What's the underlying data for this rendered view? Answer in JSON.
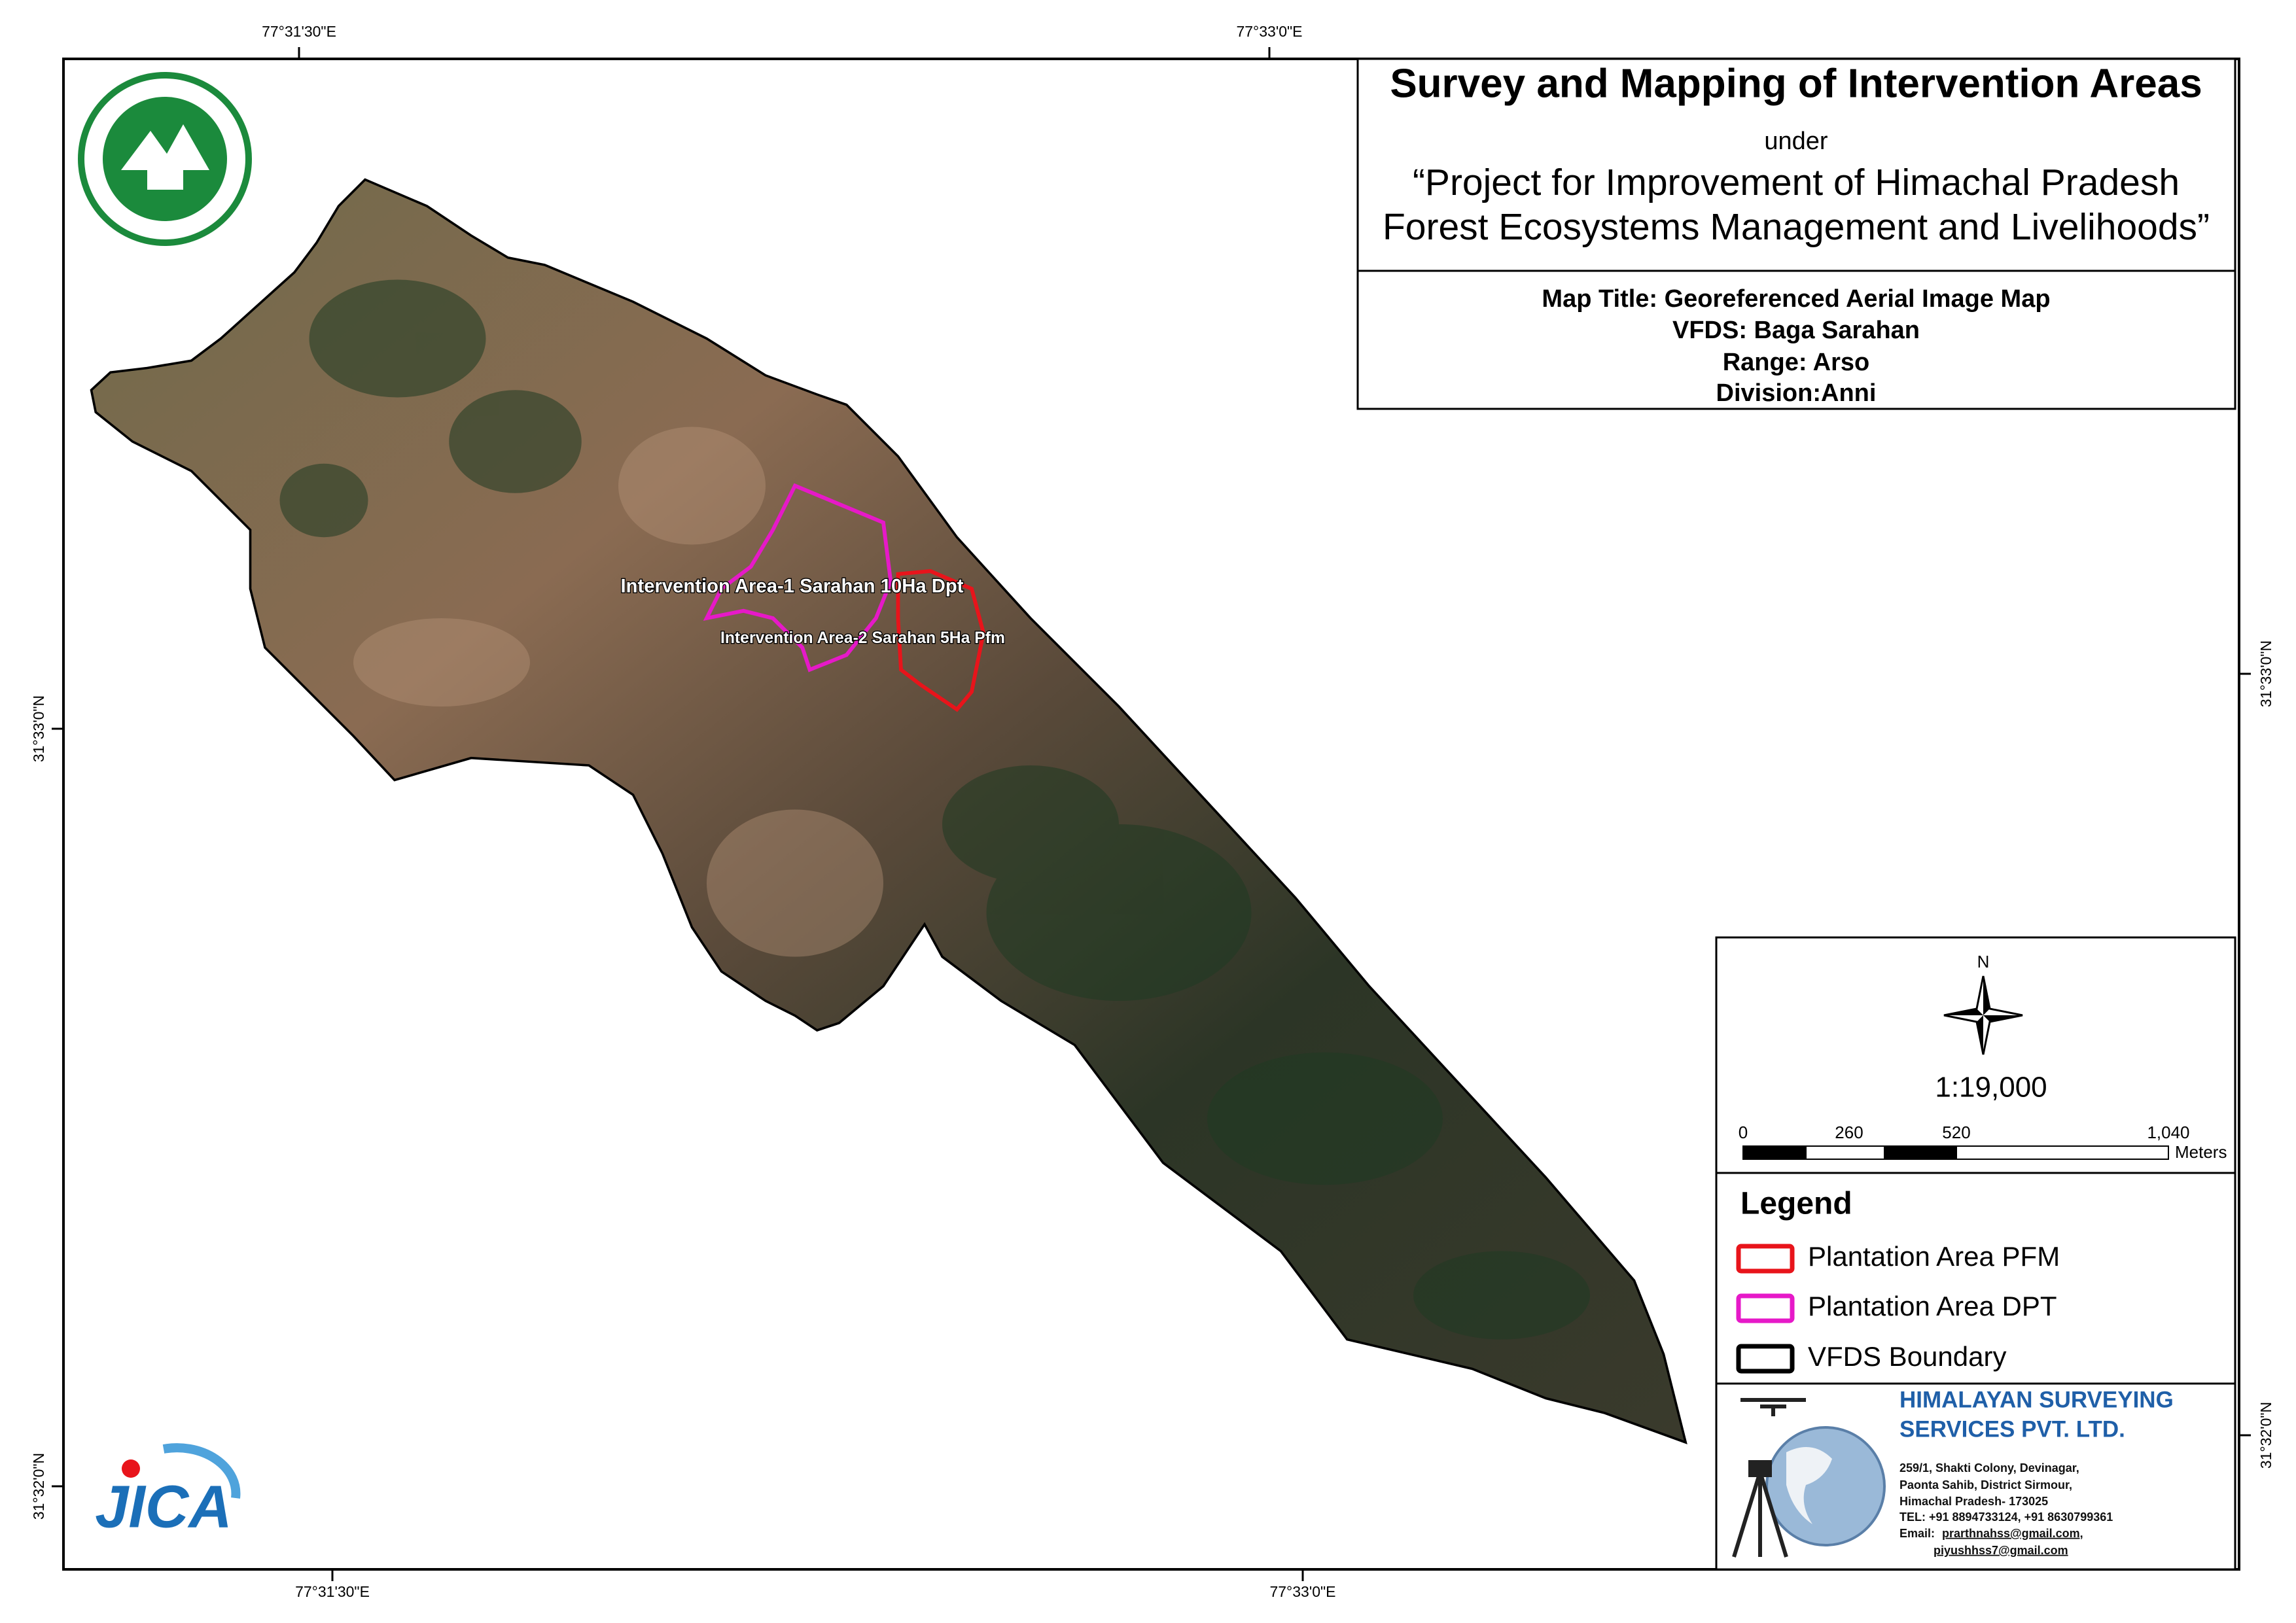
{
  "header": {
    "title": "Survey and Mapping of Intervention Areas",
    "connector": "under",
    "project_lines": [
      "“Project for Improvement of Himachal Pradesh",
      "Forest Ecosystems Management and Livelihoods”"
    ]
  },
  "map_info": [
    "Map Title: Georeferenced Aerial Image Map",
    "VFDS: Baga Sarahan",
    "Range: Arso",
    "Division:Anni"
  ],
  "grid_labels": {
    "top": [
      "77°31'30\"E",
      "77°33'0\"E"
    ],
    "bottom": [
      "77°31'30\"E",
      "77°33'0\"E"
    ],
    "left": [
      "31°33'0\"N",
      "31°32'0\"N"
    ],
    "right": [
      "31°33'0\"N",
      "31°32'0\"N"
    ]
  },
  "map_labels": [
    "Intervention Area-1 Sarahan 10Ha Dpt",
    "Intervention Area-2 Sarahan 5Ha Pfm"
  ],
  "north": "N",
  "scale": {
    "ratio": "1:19,000",
    "ticks": [
      "0",
      "260",
      "520",
      "1,040"
    ],
    "unit": "Meters"
  },
  "legend": {
    "title": "Legend",
    "items": [
      {
        "label": "Plantation Area PFM",
        "color": "#e8141b"
      },
      {
        "label": "Plantation Area DPT",
        "color": "#e619c8"
      },
      {
        "label": "VFDS Boundary",
        "color": "#000000"
      }
    ]
  },
  "company": {
    "name_lines": [
      "HIMALAYAN SURVEYING",
      "SERVICES PVT. LTD."
    ],
    "address_lines": [
      "259/1, Shakti Colony, Devinagar,",
      "Paonta Sahib, District Sirmour,",
      "Himachal Pradesh- 173025",
      "TEL: +91 8894733124, +91 8630799361"
    ],
    "email_label": "Email:",
    "emails": [
      "prarthnahss@gmail.com,",
      "piyushhss7@gmail.com"
    ]
  },
  "logos": {
    "jica": "JICA"
  }
}
